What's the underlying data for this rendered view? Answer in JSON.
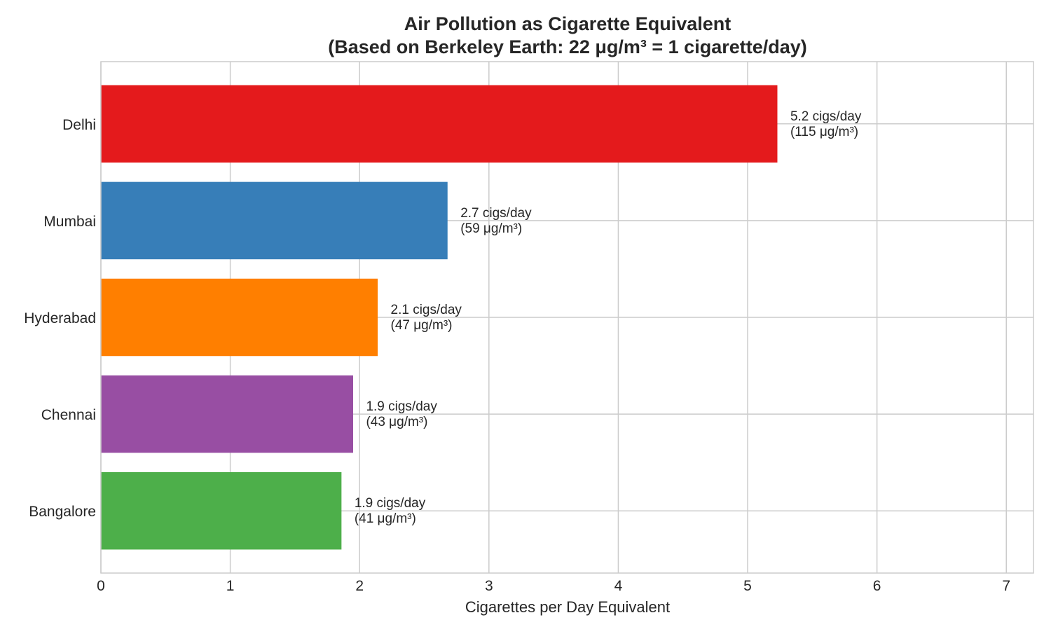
{
  "chart_data": {
    "type": "bar",
    "orientation": "horizontal",
    "title": "Air Pollution as Cigarette Equivalent",
    "subtitle": "(Based on Berkeley Earth: 22 μg/m³ = 1 cigarette/day)",
    "xlabel": "Cigarettes per Day Equivalent",
    "ylabel": "",
    "xlim": [
      0,
      7.21
    ],
    "xticks": [
      "0",
      "1",
      "2",
      "3",
      "4",
      "5",
      "6",
      "7"
    ],
    "grid": true,
    "categories": [
      "Delhi",
      "Mumbai",
      "Hyderabad",
      "Chennai",
      "Bangalore"
    ],
    "values": [
      5.23,
      2.68,
      2.14,
      1.95,
      1.86
    ],
    "pm25": [
      115,
      59,
      47,
      43,
      41
    ],
    "colors": [
      "#e41a1c",
      "#377eb8",
      "#ff7f00",
      "#984ea3",
      "#4daf4a"
    ],
    "data_labels": [
      [
        "5.2 cigs/day",
        "(115 μg/m³)"
      ],
      [
        "2.7 cigs/day",
        "(59 μg/m³)"
      ],
      [
        "2.1 cigs/day",
        "(47 μg/m³)"
      ],
      [
        "1.9 cigs/day",
        "(43 μg/m³)"
      ],
      [
        "1.9 cigs/day",
        "(41 μg/m³)"
      ]
    ]
  }
}
